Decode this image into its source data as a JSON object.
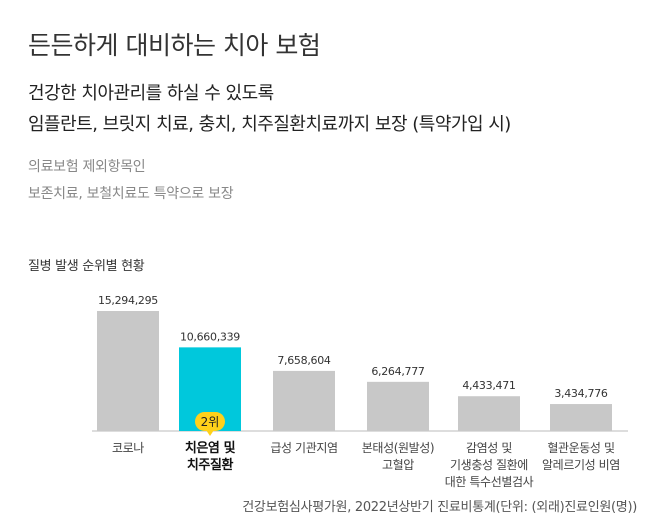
{
  "title": "든든하게 대비하는 치아 보험",
  "subtitle_lines": [
    "건강한 치아관리를 하실 수 있도록",
    "임플란트, 브릿지 치료, 충치, 치주질환치료까지 보장 (특약가입 시)"
  ],
  "notes": [
    "의료보험 제외항목인",
    "보존치료, 보철치료도 특약으로 보장"
  ],
  "source": "건강보험심사평가원, 2022년상반기 진료비통계(단위: (외래)진료인원(명))",
  "colors": {
    "bar": "#c8c8c8",
    "highlight": "#00c8dc",
    "badge": "#ffd11a"
  },
  "chart_data": {
    "type": "bar",
    "title": "질병 발생 순위별 현황",
    "categories": [
      [
        "코로나"
      ],
      [
        "치은염 및",
        "치주질환"
      ],
      [
        "급성 기관지염"
      ],
      [
        "본태성(원발성)",
        "고혈압"
      ],
      [
        "감염성 및",
        "기생충성 질환에",
        "대한 특수선별검사"
      ],
      [
        "혈관운동성 및",
        "알레르기성 비염"
      ]
    ],
    "values": [
      15294295,
      10660339,
      7658604,
      6264777,
      4433471,
      3434776
    ],
    "value_labels": [
      "15,294,295",
      "10,660,339",
      "7,658,604",
      "6,264,777",
      "4,433,471",
      "3,434,776"
    ],
    "highlight_index": 1,
    "highlight_badge": "2위",
    "ylim": [
      0,
      15294295
    ],
    "grid": false
  }
}
